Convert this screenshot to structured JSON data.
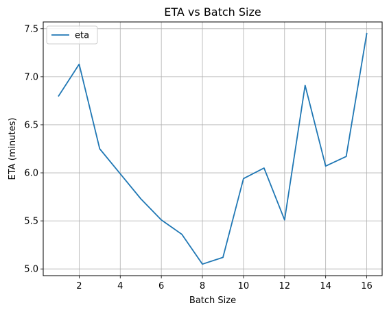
{
  "chart_data": {
    "type": "line",
    "title": "ETA vs Batch Size",
    "xlabel": "Batch Size",
    "ylabel": "ETA (minutes)",
    "xlim": [
      0.25,
      16.75
    ],
    "ylim": [
      4.93,
      7.57
    ],
    "x_ticks": [
      2,
      4,
      6,
      8,
      10,
      12,
      14,
      16
    ],
    "x_tick_labels": [
      "2",
      "4",
      "6",
      "8",
      "10",
      "12",
      "14",
      "16"
    ],
    "y_ticks": [
      5.0,
      5.5,
      6.0,
      6.5,
      7.0,
      7.5
    ],
    "y_tick_labels": [
      "5.0",
      "5.5",
      "6.0",
      "6.5",
      "7.0",
      "7.5"
    ],
    "grid": true,
    "legend_position": "top-left",
    "series": [
      {
        "name": "eta",
        "color": "#1f77b4",
        "x": [
          1,
          2,
          3,
          4,
          5,
          6,
          7,
          8,
          9,
          10,
          11,
          12,
          13,
          14,
          15,
          16
        ],
        "y": [
          6.8,
          7.13,
          6.25,
          5.99,
          5.73,
          5.51,
          5.36,
          5.05,
          5.12,
          5.94,
          6.05,
          5.51,
          6.91,
          6.07,
          6.17,
          7.45
        ]
      }
    ]
  }
}
